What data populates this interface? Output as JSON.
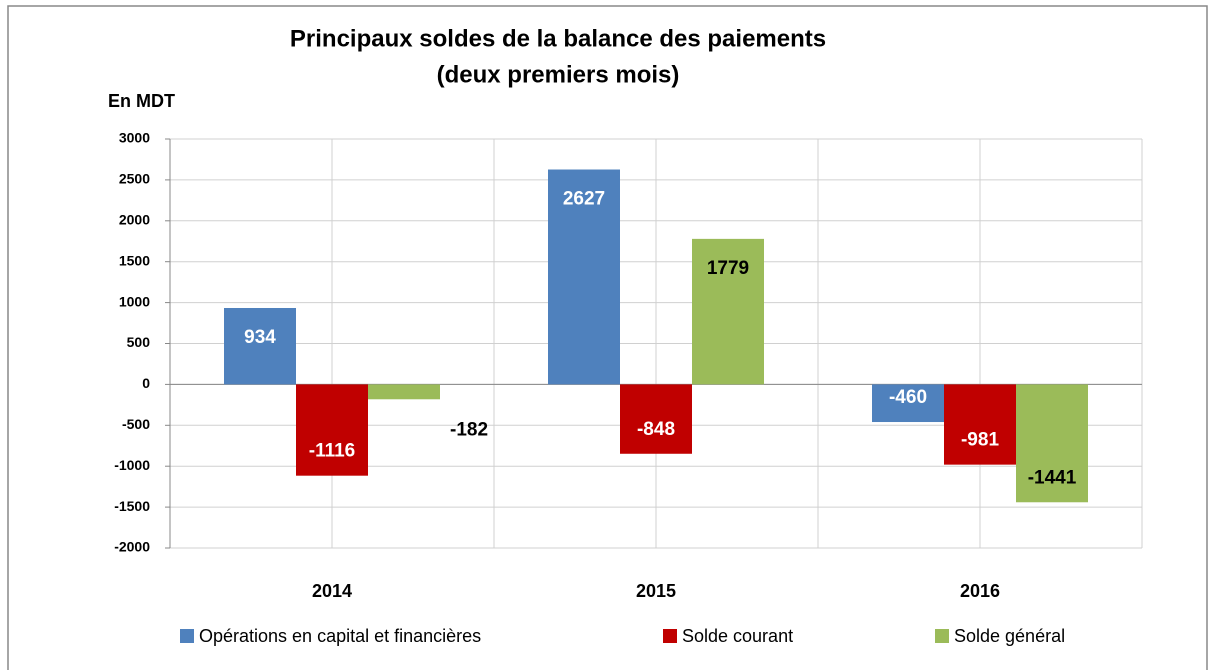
{
  "chart_data": {
    "type": "bar",
    "title": [
      "Principaux soldes de la balance des paiements",
      "(deux premiers mois)"
    ],
    "y_label": "En MDT",
    "categories": [
      "2014",
      "2015",
      "2016"
    ],
    "series": [
      {
        "name": "Opérations en capital et financières",
        "color": "#4f81bd",
        "values": [
          934,
          2627,
          -460
        ]
      },
      {
        "name": "Solde courant",
        "color": "#c00000",
        "values": [
          -1116,
          -848,
          -981
        ]
      },
      {
        "name": "Solde général",
        "color": "#9bbb59",
        "values": [
          -182,
          1779,
          -1441
        ]
      }
    ],
    "ylim": [
      -2000,
      3000
    ],
    "yticks": [
      -2000,
      -1500,
      -1000,
      -500,
      0,
      500,
      1000,
      1500,
      2000,
      2500,
      3000
    ],
    "grid": true,
    "legend": "bottom"
  }
}
